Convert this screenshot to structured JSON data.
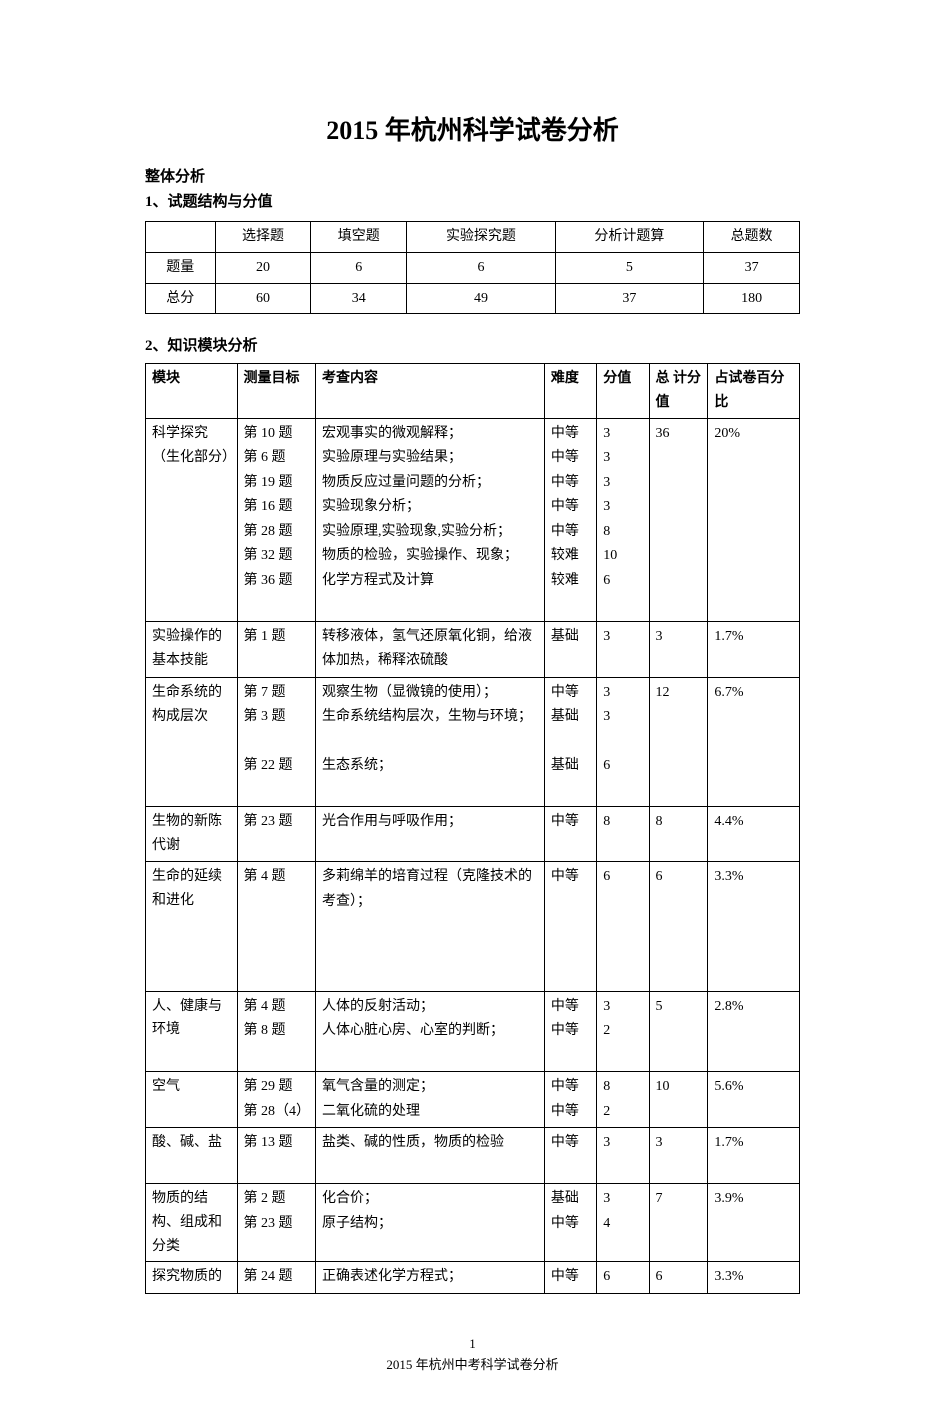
{
  "page": {
    "title": "2015 年杭州科学试卷分析",
    "section_overall": "整体分析",
    "sub1": "1、试题结构与分值",
    "sub2": "2、知识模块分析",
    "footer_page": "1",
    "footer_text": "2015 年杭州中考科学试卷分析"
  },
  "struct": {
    "headers": [
      "",
      "选择题",
      "填空题",
      "实验探究题",
      "分析计题算",
      "总题数"
    ],
    "rows": [
      [
        "题量",
        "20",
        "6",
        "6",
        "5",
        "37"
      ],
      [
        "总分",
        "60",
        "34",
        "49",
        "37",
        "180"
      ]
    ]
  },
  "mod": {
    "headers": [
      "模块",
      "测量目标",
      "考查内容",
      "难度",
      "分值",
      "总 计分值",
      "占试卷百分比"
    ],
    "widths": [
      "14%",
      "12%",
      "35%",
      "8%",
      "8%",
      "9%",
      "14%"
    ],
    "rows": [
      {
        "module": "科学探究（生化部分）",
        "targets": [
          "第 10 题",
          "第 6 题",
          "第 19 题",
          "第 16 题",
          "第 28 题",
          "第 32 题",
          "第 36 题"
        ],
        "contents": [
          "宏观事实的微观解释；",
          "实验原理与实验结果；",
          "物质反应过量问题的分析；",
          "实验现象分析；",
          "实验原理,实验现象,实验分析；",
          "物质的检验，实验操作、现象；",
          "化学方程式及计算"
        ],
        "diffs": [
          "中等",
          "中等",
          "中等",
          "中等",
          "中等",
          "较难",
          "较难"
        ],
        "scores": [
          "3",
          "3",
          "3",
          "3",
          "8",
          "10",
          "6"
        ],
        "total": "36",
        "pct": "20%",
        "trailing_blank": true
      },
      {
        "module": "实验操作的基本技能",
        "targets": [
          "第 1 题"
        ],
        "contents": [
          "转移液体，氢气还原氧化铜，给液体加热，稀释浓硫酸"
        ],
        "diffs": [
          "基础"
        ],
        "scores": [
          "3"
        ],
        "total": "3",
        "pct": "1.7%"
      },
      {
        "module": "生命系统的构成层次",
        "targets": [
          "第 7 题",
          "第 3 题",
          "",
          "第 22 题"
        ],
        "contents": [
          "观察生物（显微镜的使用）；",
          "生命系统结构层次，生物与环境；",
          "",
          "生态系统；"
        ],
        "diffs": [
          "中等",
          "基础",
          "",
          "基础"
        ],
        "scores": [
          "3",
          "3",
          "",
          "6"
        ],
        "total": "12",
        "pct": "6.7%",
        "trailing_blank": true
      },
      {
        "module": "生物的新陈代谢",
        "targets": [
          "第 23 题"
        ],
        "contents": [
          "光合作用与呼吸作用；"
        ],
        "diffs": [
          "中等"
        ],
        "scores": [
          "8"
        ],
        "total": "8",
        "pct": "4.4%"
      },
      {
        "module": "生命的延续和进化",
        "targets": [
          "第 4 题"
        ],
        "contents": [
          "多莉绵羊的培育过程（克隆技术的考查）；"
        ],
        "diffs": [
          "中等"
        ],
        "scores": [
          "6"
        ],
        "total": "6",
        "pct": "3.3%",
        "trailing_blank": true,
        "extra_blank": true
      },
      {
        "module": "人、健康与环境",
        "targets": [
          "第 4 题",
          "第 8 题"
        ],
        "contents": [
          "人体的反射活动；",
          "人体心脏心房、心室的判断；"
        ],
        "diffs": [
          "中等",
          "中等"
        ],
        "scores": [
          "3",
          "2"
        ],
        "total": "5",
        "pct": "2.8%",
        "trailing_blank": true
      },
      {
        "module": "空气",
        "targets": [
          "第 29 题",
          "第 28（4）"
        ],
        "contents": [
          "氧气含量的测定；",
          "二氧化硫的处理"
        ],
        "diffs": [
          "中等",
          "中等"
        ],
        "scores": [
          "8",
          "2"
        ],
        "total": "10",
        "pct": "5.6%"
      },
      {
        "module": "酸、碱、盐",
        "targets": [
          "第 13 题"
        ],
        "contents": [
          "盐类、碱的性质，物质的检验"
        ],
        "diffs": [
          "中等"
        ],
        "scores": [
          "3"
        ],
        "total": "3",
        "pct": "1.7%",
        "trailing_blank": true
      },
      {
        "module": "物质的结构、组成和分类",
        "targets": [
          "第 2 题",
          "第 23 题"
        ],
        "contents": [
          "化合价；",
          "原子结构；"
        ],
        "diffs": [
          "基础",
          "中等"
        ],
        "scores": [
          "3",
          "4"
        ],
        "total": "7",
        "pct": "3.9%"
      },
      {
        "module": "探究物质的",
        "targets": [
          "第 24 题"
        ],
        "contents": [
          "正确表述化学方程式；"
        ],
        "diffs": [
          "中等"
        ],
        "scores": [
          "6"
        ],
        "total": "6",
        "pct": "3.3%"
      }
    ]
  }
}
